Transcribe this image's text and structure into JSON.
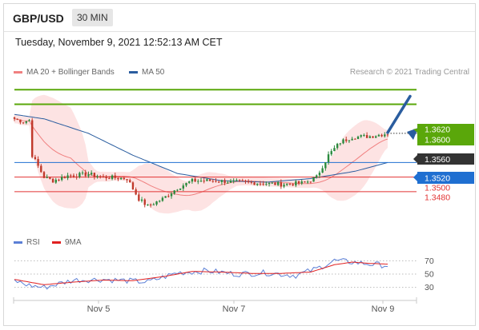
{
  "header": {
    "pair": "GBP/USD",
    "timeframe": "30 MIN"
  },
  "datetime": "Tuesday, November 9, 2021 12:52:13 AM CET",
  "legend": {
    "ma20": "MA 20 + Bollinger Bands",
    "ma50": "MA 50",
    "ma20_color": "#f08080",
    "ma50_color": "#2a5d9f"
  },
  "credit": "Research © 2021 Trading Central",
  "price_levels": {
    "r2": "1.3620",
    "r1": "1.3600",
    "current": "1.3560",
    "pivot": "1.3520",
    "s1": "1.3500",
    "s2": "1.3480"
  },
  "rsi_legend": {
    "rsi": "RSI",
    "ma9": "9MA",
    "rsi_color": "#5b7fd6",
    "ma9_color": "#e02020"
  },
  "rsi_levels": [
    "70",
    "50",
    "30"
  ],
  "x_axis": [
    "Nov 5",
    "Nov 7",
    "Nov 9"
  ],
  "colors": {
    "resistance": "#5aa70a",
    "pivot": "#1f6fd1",
    "support": "#e23333",
    "current_bg": "#333333",
    "candle_green": "#2b8a3e",
    "candle_red": "#c0392b",
    "bollinger_fill": "#fde3e3",
    "arrow": "#2a5d9f"
  },
  "chart_data": {
    "type": "candlestick",
    "instrument": "GBP/USD",
    "timeframe": "30 MIN",
    "x_ticks": [
      "Nov 5",
      "Nov 7",
      "Nov 9"
    ],
    "ylim": [
      1.3425,
      1.364
    ],
    "close_path": [
      {
        "i": 0,
        "c": 1.358
      },
      {
        "i": 3,
        "c": 1.3576
      },
      {
        "i": 5,
        "c": 1.3578
      },
      {
        "i": 6,
        "c": 1.353
      },
      {
        "i": 8,
        "c": 1.3515
      },
      {
        "i": 10,
        "c": 1.35
      },
      {
        "i": 13,
        "c": 1.3495
      },
      {
        "i": 18,
        "c": 1.3502
      },
      {
        "i": 25,
        "c": 1.3504
      },
      {
        "i": 30,
        "c": 1.35
      },
      {
        "i": 38,
        "c": 1.3498
      },
      {
        "i": 42,
        "c": 1.347
      },
      {
        "i": 45,
        "c": 1.346
      },
      {
        "i": 50,
        "c": 1.347
      },
      {
        "i": 55,
        "c": 1.3485
      },
      {
        "i": 60,
        "c": 1.3495
      },
      {
        "i": 68,
        "c": 1.3495
      },
      {
        "i": 75,
        "c": 1.3493
      },
      {
        "i": 82,
        "c": 1.3492
      },
      {
        "i": 90,
        "c": 1.349
      },
      {
        "i": 98,
        "c": 1.3492
      },
      {
        "i": 102,
        "c": 1.35
      },
      {
        "i": 106,
        "c": 1.353
      },
      {
        "i": 110,
        "c": 1.3548
      },
      {
        "i": 114,
        "c": 1.3555
      },
      {
        "i": 120,
        "c": 1.3556
      },
      {
        "i": 126,
        "c": 1.356
      }
    ],
    "ma50_path": [
      {
        "i": 0,
        "c": 1.3586
      },
      {
        "i": 10,
        "c": 1.358
      },
      {
        "i": 25,
        "c": 1.356
      },
      {
        "i": 40,
        "c": 1.353
      },
      {
        "i": 55,
        "c": 1.3505
      },
      {
        "i": 70,
        "c": 1.3495
      },
      {
        "i": 85,
        "c": 1.3493
      },
      {
        "i": 100,
        "c": 1.3498
      },
      {
        "i": 115,
        "c": 1.3508
      },
      {
        "i": 126,
        "c": 1.352
      }
    ],
    "levels": {
      "resistance": [
        1.362,
        1.36
      ],
      "pivot": 1.352,
      "support": [
        1.35,
        1.348
      ],
      "last": 1.356
    },
    "rsi": {
      "levels": [
        70,
        50,
        30
      ],
      "ylim": [
        20,
        80
      ],
      "rsi_path": [
        {
          "i": 0,
          "v": 40
        },
        {
          "i": 5,
          "v": 33
        },
        {
          "i": 10,
          "v": 30
        },
        {
          "i": 20,
          "v": 41
        },
        {
          "i": 30,
          "v": 42
        },
        {
          "i": 38,
          "v": 40
        },
        {
          "i": 45,
          "v": 38
        },
        {
          "i": 55,
          "v": 52
        },
        {
          "i": 65,
          "v": 55
        },
        {
          "i": 75,
          "v": 50
        },
        {
          "i": 85,
          "v": 52
        },
        {
          "i": 95,
          "v": 48
        },
        {
          "i": 102,
          "v": 58
        },
        {
          "i": 108,
          "v": 70
        },
        {
          "i": 114,
          "v": 68
        },
        {
          "i": 120,
          "v": 65
        },
        {
          "i": 126,
          "v": 63
        }
      ],
      "ma9_path": [
        {
          "i": 0,
          "v": 42
        },
        {
          "i": 10,
          "v": 34
        },
        {
          "i": 20,
          "v": 38
        },
        {
          "i": 30,
          "v": 41
        },
        {
          "i": 40,
          "v": 40
        },
        {
          "i": 50,
          "v": 46
        },
        {
          "i": 60,
          "v": 54
        },
        {
          "i": 70,
          "v": 53
        },
        {
          "i": 80,
          "v": 51
        },
        {
          "i": 90,
          "v": 51
        },
        {
          "i": 100,
          "v": 53
        },
        {
          "i": 108,
          "v": 64
        },
        {
          "i": 114,
          "v": 68
        },
        {
          "i": 120,
          "v": 66
        },
        {
          "i": 126,
          "v": 65
        }
      ]
    }
  }
}
